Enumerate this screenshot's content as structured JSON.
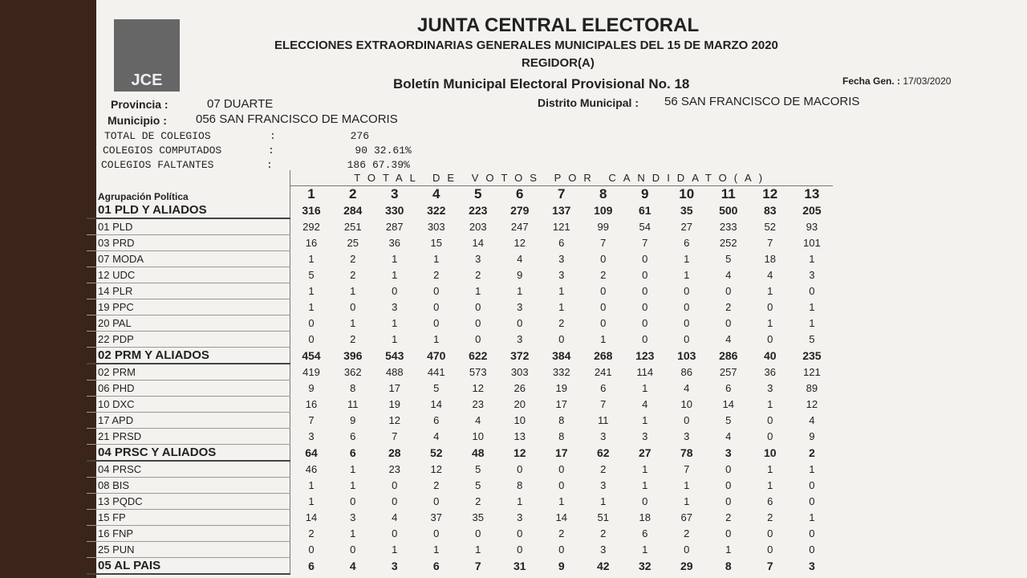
{
  "header": {
    "logo": "JCE",
    "title": "JUNTA CENTRAL ELECTORAL",
    "subtitle": "ELECCIONES EXTRAORDINARIAS GENERALES MUNICIPALES DEL 15 DE MARZO 2020",
    "position": "REGIDOR(A)",
    "bulletin": "Boletín Municipal Electoral Provisional No. 18",
    "date_label": "Fecha Gen. :",
    "date": "17/03/2020"
  },
  "info": {
    "provincia_label": "Provincia :",
    "provincia": "07 DUARTE",
    "distrito_label": "Distrito Municipal :",
    "distrito": "56 SAN FRANCISCO DE MACORIS",
    "municipio_label": "Municipio :",
    "municipio": "056 SAN FRANCISCO DE MACORIS"
  },
  "stats": [
    {
      "label": "TOTAL DE COLEGIOS",
      "separator": ":",
      "count": 276
    },
    {
      "label": "COLEGIOS COMPUTADOS",
      "separator": ":",
      "count": 90,
      "percent": "32.61%"
    },
    {
      "label": "COLEGIOS FALTANTES",
      "separator": ":",
      "count": 186,
      "percent": "67.39%"
    }
  ],
  "table": {
    "super_header": "TOTAL DE VOTOS POR CANDIDATO(A)",
    "party_header": "Agrupación Política",
    "candidates": [
      1,
      2,
      3,
      4,
      5,
      6,
      7,
      8,
      9,
      10,
      11,
      12,
      13
    ],
    "rows": [
      {
        "name": "01 PLD Y ALIADOS",
        "bold": true,
        "values": [
          316,
          284,
          330,
          322,
          223,
          279,
          137,
          109,
          61,
          35,
          500,
          83,
          205
        ]
      },
      {
        "name": "01 PLD",
        "bold": false,
        "values": [
          292,
          251,
          287,
          303,
          203,
          247,
          121,
          99,
          54,
          27,
          233,
          52,
          93
        ]
      },
      {
        "name": "03 PRD",
        "bold": false,
        "values": [
          16,
          25,
          36,
          15,
          14,
          12,
          6,
          7,
          7,
          6,
          252,
          7,
          101
        ]
      },
      {
        "name": "07 MODA",
        "bold": false,
        "values": [
          1,
          2,
          1,
          1,
          3,
          4,
          3,
          0,
          0,
          1,
          5,
          18,
          1
        ]
      },
      {
        "name": "12 UDC",
        "bold": false,
        "values": [
          5,
          2,
          1,
          2,
          2,
          9,
          3,
          2,
          0,
          1,
          4,
          4,
          3
        ]
      },
      {
        "name": "14 PLR",
        "bold": false,
        "values": [
          1,
          1,
          0,
          0,
          1,
          1,
          1,
          0,
          0,
          0,
          0,
          1,
          0
        ]
      },
      {
        "name": "19 PPC",
        "bold": false,
        "values": [
          1,
          0,
          3,
          0,
          0,
          3,
          1,
          0,
          0,
          0,
          2,
          0,
          1
        ]
      },
      {
        "name": "20 PAL",
        "bold": false,
        "values": [
          0,
          1,
          1,
          0,
          0,
          0,
          2,
          0,
          0,
          0,
          0,
          1,
          1
        ]
      },
      {
        "name": "22 PDP",
        "bold": false,
        "values": [
          0,
          2,
          1,
          1,
          0,
          3,
          0,
          1,
          0,
          0,
          4,
          0,
          5
        ]
      },
      {
        "name": "02 PRM Y ALIADOS",
        "bold": true,
        "values": [
          454,
          396,
          543,
          470,
          622,
          372,
          384,
          268,
          123,
          103,
          286,
          40,
          235
        ]
      },
      {
        "name": "02 PRM",
        "bold": false,
        "values": [
          419,
          362,
          488,
          441,
          573,
          303,
          332,
          241,
          114,
          86,
          257,
          36,
          121
        ]
      },
      {
        "name": "06 PHD",
        "bold": false,
        "values": [
          9,
          8,
          17,
          5,
          12,
          26,
          19,
          6,
          1,
          4,
          6,
          3,
          89
        ]
      },
      {
        "name": "10 DXC",
        "bold": false,
        "values": [
          16,
          11,
          19,
          14,
          23,
          20,
          17,
          7,
          4,
          10,
          14,
          1,
          12
        ]
      },
      {
        "name": "17 APD",
        "bold": false,
        "values": [
          7,
          9,
          12,
          6,
          4,
          10,
          8,
          11,
          1,
          0,
          5,
          0,
          4
        ]
      },
      {
        "name": "21 PRSD",
        "bold": false,
        "values": [
          3,
          6,
          7,
          4,
          10,
          13,
          8,
          3,
          3,
          3,
          4,
          0,
          9
        ]
      },
      {
        "name": "04 PRSC Y ALIADOS",
        "bold": true,
        "values": [
          64,
          6,
          28,
          52,
          48,
          12,
          17,
          62,
          27,
          78,
          3,
          10,
          2
        ]
      },
      {
        "name": "04 PRSC",
        "bold": false,
        "values": [
          46,
          1,
          23,
          12,
          5,
          0,
          0,
          2,
          1,
          7,
          0,
          1,
          1
        ]
      },
      {
        "name": "08 BIS",
        "bold": false,
        "values": [
          1,
          1,
          0,
          2,
          5,
          8,
          0,
          3,
          1,
          1,
          0,
          1,
          0
        ]
      },
      {
        "name": "13 PQDC",
        "bold": false,
        "values": [
          1,
          0,
          0,
          0,
          2,
          1,
          1,
          1,
          0,
          1,
          0,
          6,
          0
        ]
      },
      {
        "name": "15 FP",
        "bold": false,
        "values": [
          14,
          3,
          4,
          37,
          35,
          3,
          14,
          51,
          18,
          67,
          2,
          2,
          1
        ]
      },
      {
        "name": "16 FNP",
        "bold": false,
        "values": [
          2,
          1,
          0,
          0,
          0,
          0,
          2,
          2,
          6,
          2,
          0,
          0,
          0
        ]
      },
      {
        "name": "25 PUN",
        "bold": false,
        "values": [
          0,
          0,
          1,
          1,
          1,
          0,
          0,
          3,
          1,
          0,
          1,
          0,
          0
        ]
      },
      {
        "name": "05 AL PAIS",
        "bold": true,
        "values": [
          6,
          4,
          3,
          6,
          7,
          31,
          9,
          42,
          32,
          29,
          8,
          7,
          3
        ]
      }
    ]
  }
}
